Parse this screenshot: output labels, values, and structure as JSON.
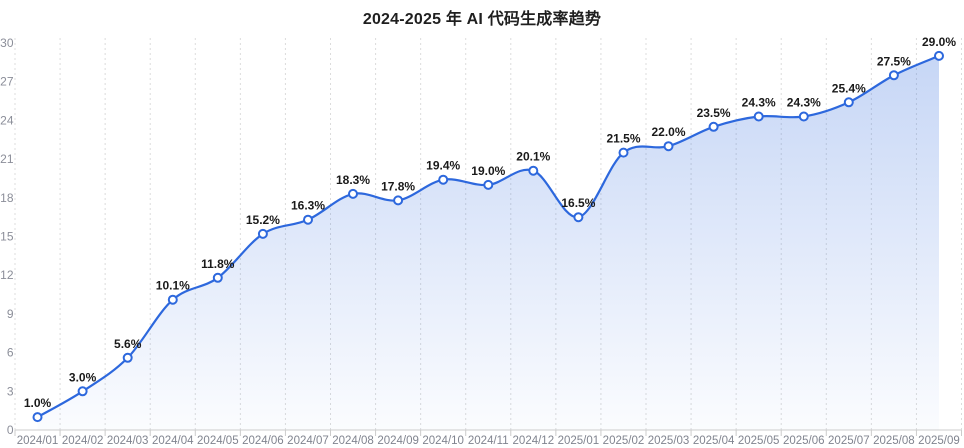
{
  "chart_data": {
    "type": "line",
    "variant": "smooth-area-with-point-markers",
    "title": "2024-2025 年 AI 代码生成率趋势",
    "categories": [
      "2024/01",
      "2024/02",
      "2024/03",
      "2024/04",
      "2024/05",
      "2024/06",
      "2024/07",
      "2024/08",
      "2024/09",
      "2024/10",
      "2024/11",
      "2024/12",
      "2025/01",
      "2025/02",
      "2025/03",
      "2025/04",
      "2025/05",
      "2025/06",
      "2025/07",
      "2025/08",
      "2025/09"
    ],
    "values": [
      1.0,
      3.0,
      5.6,
      10.1,
      11.8,
      15.2,
      16.3,
      18.3,
      17.8,
      19.4,
      19.0,
      20.1,
      16.5,
      21.5,
      22.0,
      23.5,
      24.3,
      24.3,
      25.4,
      27.5,
      29.0
    ],
    "point_labels": [
      "1.0%",
      "3.0%",
      "5.6%",
      "10.1%",
      "11.8%",
      "15.2%",
      "16.3%",
      "18.3%",
      "17.8%",
      "19.4%",
      "19.0%",
      "20.1%",
      "16.5%",
      "21.5%",
      "22.0%",
      "23.5%",
      "24.3%",
      "24.3%",
      "25.4%",
      "27.5%",
      "29.0%"
    ],
    "xlabel": "",
    "ylabel": "",
    "ylim": [
      0,
      30
    ],
    "y_ticks": [
      0,
      3,
      6,
      9,
      12,
      15,
      18,
      21,
      24,
      27,
      30
    ],
    "y_tick_labels": [
      "0",
      "3",
      "6",
      "9",
      "12",
      "15",
      "18",
      "21",
      "24",
      "27",
      "30"
    ],
    "grid": "vertical-dashed",
    "legend": "none",
    "colors": {
      "line": "#2d68dd",
      "marker_fill": "#ffffff",
      "area_top": "rgba(45,104,221,0.28)",
      "area_bottom": "rgba(45,104,221,0.02)",
      "gridline": "#dcdcdc",
      "axis_line": "#cccccc",
      "axis_label": "#8b8e99",
      "data_label": "#1a1a1a",
      "title": "#1f1f1f"
    }
  }
}
